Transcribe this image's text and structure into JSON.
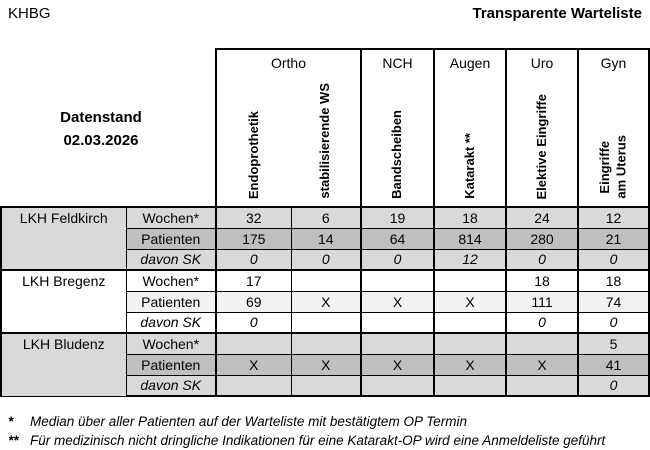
{
  "header": {
    "org": "KHBG",
    "title": "Transparente Warteliste"
  },
  "datenstand": {
    "label": "Datenstand",
    "date": "02.03.2026"
  },
  "table": {
    "groups": {
      "ortho": "Ortho",
      "nch": "NCH",
      "augen": "Augen",
      "uro": "Uro",
      "gyn": "Gyn"
    },
    "columns": {
      "c1": "Endoprothetik",
      "c2": "stabilisierende WS",
      "c3": "Bandscheiben",
      "c4": "Katarakt **",
      "c5": "Elektive Eingriffe",
      "c6": "Eingriffe\nam Uterus"
    },
    "row_labels": {
      "wochen": "Wochen*",
      "patienten": "Patienten",
      "davon_sk": "davon SK"
    },
    "hospitals": [
      {
        "name": "LKH Feldkirch",
        "wochen": [
          "32",
          "6",
          "19",
          "18",
          "24",
          "12"
        ],
        "patienten": [
          "175",
          "14",
          "64",
          "814",
          "280",
          "21"
        ],
        "davon_sk": [
          "0",
          "0",
          "0",
          "12",
          "0",
          "0"
        ]
      },
      {
        "name": "LKH Bregenz",
        "wochen": [
          "17",
          "",
          "",
          "",
          "18",
          "18"
        ],
        "patienten": [
          "69",
          "X",
          "X",
          "X",
          "111",
          "74"
        ],
        "davon_sk": [
          "0",
          "",
          "",
          "",
          "0",
          "0"
        ]
      },
      {
        "name": "LKH Bludenz",
        "wochen": [
          "",
          "",
          "",
          "",
          "",
          "5"
        ],
        "patienten": [
          "X",
          "X",
          "X",
          "X",
          "X",
          "41"
        ],
        "davon_sk": [
          "",
          "",
          "",
          "",
          "",
          "0"
        ]
      }
    ]
  },
  "footnotes": [
    {
      "marker": "*",
      "text": "Median über aller Patienten auf der Warteliste mit bestätigtem OP Termin"
    },
    {
      "marker": "**",
      "text": "Für medizinisch nicht dringliche Indikationen für eine Katarakt-OP wird eine Anmeldeliste geführt"
    }
  ],
  "colors": {
    "block_base_gray": "#D9D9D9",
    "patienten_dark_gray": "#BFBFBF",
    "patienten_light_gray": "#F2F2F2",
    "border": "#000000"
  }
}
